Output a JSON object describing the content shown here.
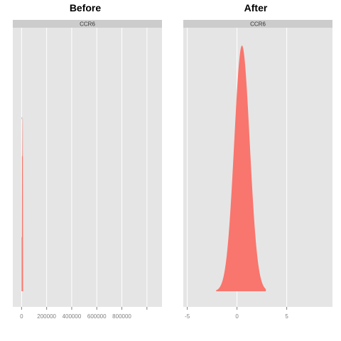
{
  "chart_data": [
    {
      "type": "area",
      "title": "Before",
      "facet_label": "CCR6",
      "xlim": [
        -70000,
        1120000
      ],
      "x_ticks": [
        0,
        200000,
        400000,
        600000,
        800000,
        1000000
      ],
      "x_tick_labels": [
        "0",
        "200000",
        "400000",
        "600000",
        "800000",
        ""
      ],
      "density_spike": {
        "x": [
          0,
          0,
          2000,
          3000,
          6000,
          8000,
          10000,
          12000,
          12000
        ],
        "y": [
          0,
          0.22,
          0.22,
          0.55,
          0.55,
          0.7,
          0.7,
          0,
          0
        ]
      },
      "ylim": [
        0,
        1.0
      ],
      "fill_color": "#F8766D",
      "panel_color": "#E5E5E5",
      "strip_color": "#CCCCCC",
      "grid": true
    },
    {
      "type": "area",
      "title": "After",
      "facet_label": "CCR6",
      "xlim": [
        -5.4,
        9.6
      ],
      "x_ticks": [
        -5,
        0,
        5
      ],
      "x_tick_labels": [
        "-5",
        "0",
        "5"
      ],
      "density": {
        "mean": 0.5,
        "sd": 0.78,
        "x_min": -2.1,
        "x_max": 2.9,
        "peak": 1.0
      },
      "ylim": [
        0,
        1.0
      ],
      "fill_color": "#F8766D",
      "panel_color": "#E5E5E5",
      "strip_color": "#CCCCCC",
      "grid": true
    }
  ]
}
